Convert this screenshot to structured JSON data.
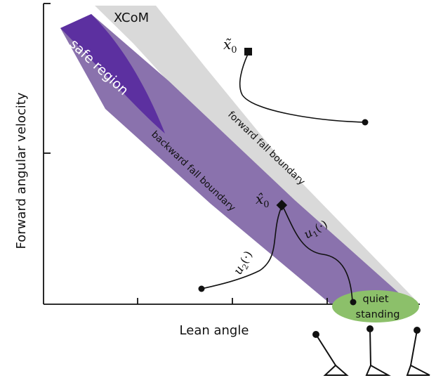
{
  "axes": {
    "xlabel": "Lean angle",
    "ylabel": "Forward angular velocity"
  },
  "regions": {
    "xcom_label": "XCoM",
    "safe_label": "safe region",
    "forward_boundary_label": "forward fall boundary",
    "backward_boundary_label": "backward fall boundary",
    "quiet_standing_line1": "quiet",
    "quiet_standing_line2": "standing"
  },
  "points": {
    "x_tilde_symbol": "x̃",
    "x_tilde_subscript": "0",
    "x_hat_symbol": "x̂",
    "x_hat_subscript": "0"
  },
  "controls": {
    "u1_symbol": "u",
    "u1_subscript": "1",
    "u1_arg": "(·)",
    "u2_symbol": "u",
    "u2_subscript": "2",
    "u2_arg": "(·)"
  },
  "colors": {
    "xcom_fill": "#d9d9d9",
    "safe_dark": "#5c30a0",
    "safe_light": "#8a72ad",
    "quiet_standing": "#8cc06a",
    "ink": "#111111"
  },
  "icons": [
    "leaning-back-stick-figure",
    "upright-stick-figure",
    "leaning-forward-stick-figure"
  ]
}
